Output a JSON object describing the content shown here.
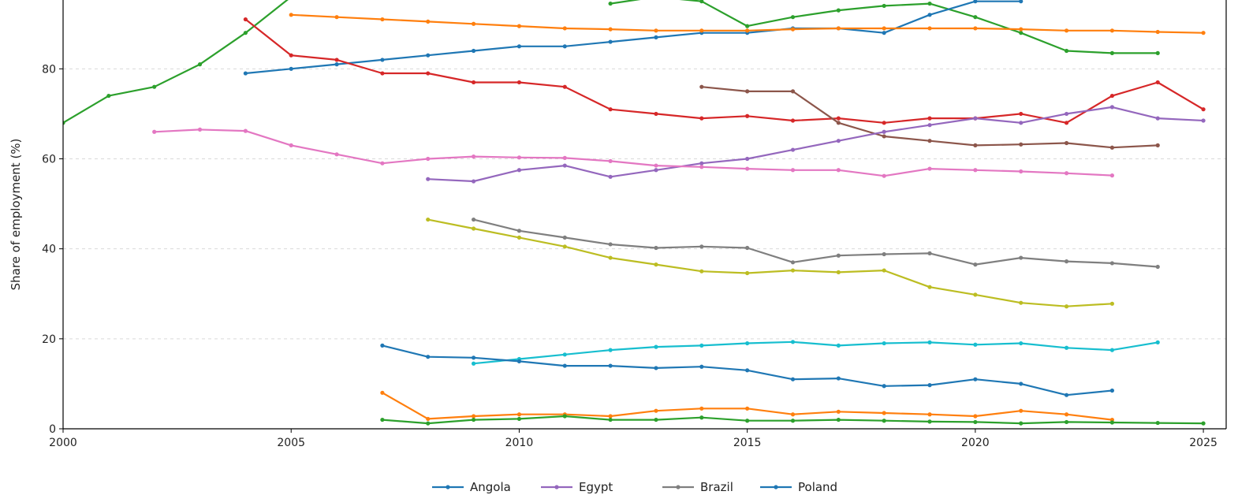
{
  "chart_data": {
    "type": "line",
    "title": "",
    "xlabel": "",
    "ylabel": "Share of employment (%)",
    "xlim": [
      2000,
      2025.5
    ],
    "ylim": [
      0,
      96
    ],
    "grid": "horizontal-dashed",
    "x_ticks": [
      2000,
      2005,
      2010,
      2015,
      2020,
      2025
    ],
    "y_ticks": [
      0,
      20,
      40,
      60,
      80
    ],
    "legend": {
      "placement": "bottom",
      "entries": [
        {
          "label": "Angola",
          "color": "#1f77b4"
        },
        {
          "label": "Egypt",
          "color": "#9467bd"
        },
        {
          "label": "Brazil",
          "color": "#7f7f7f"
        },
        {
          "label": "Poland",
          "color": "#1f77b4"
        }
      ]
    },
    "series": [
      {
        "color": "#2ca02c",
        "x": [
          2000,
          2001,
          2002,
          2003,
          2004,
          2005
        ],
        "y": [
          68,
          74,
          76,
          81,
          88,
          96
        ]
      },
      {
        "color": "#2ca02c",
        "x": [
          2012,
          2013,
          2014,
          2015,
          2016,
          2017,
          2018,
          2019,
          2020,
          2021,
          2022,
          2023,
          2024
        ],
        "y": [
          94.5,
          96,
          95,
          89.5,
          91.5,
          93,
          94,
          94.5,
          91.5,
          88,
          84,
          83.5,
          83.5
        ]
      },
      {
        "color": "#1f77b4",
        "x": [
          2004,
          2005,
          2006,
          2007,
          2008,
          2009,
          2010,
          2011,
          2012,
          2013,
          2014,
          2015,
          2016,
          2017,
          2018,
          2019,
          2020,
          2021
        ],
        "y": [
          79,
          80,
          81,
          82,
          83,
          84,
          85,
          85,
          86,
          87,
          88,
          88,
          89,
          89,
          88,
          92,
          95,
          95
        ]
      },
      {
        "color": "#ff7f0e",
        "x": [
          2005,
          2006,
          2007,
          2008,
          2009,
          2010,
          2011,
          2012,
          2013,
          2014,
          2015,
          2016,
          2017,
          2018,
          2019,
          2020,
          2021,
          2022,
          2023,
          2024,
          2025
        ],
        "y": [
          92,
          91.5,
          91,
          90.5,
          90,
          89.5,
          89,
          88.8,
          88.5,
          88.5,
          88.5,
          88.8,
          89,
          89,
          89,
          89,
          88.8,
          88.5,
          88.5,
          88.2,
          88
        ]
      },
      {
        "color": "#d62728",
        "x": [
          2004,
          2005,
          2006,
          2007,
          2008,
          2009,
          2010,
          2011,
          2012,
          2013,
          2014,
          2015,
          2016,
          2017,
          2018,
          2019,
          2020,
          2021,
          2022,
          2023,
          2024,
          2025
        ],
        "y": [
          91,
          83,
          82,
          79,
          79,
          77,
          77,
          76,
          71,
          70,
          69,
          69.5,
          68.5,
          69,
          68,
          69,
          69,
          70,
          68,
          74,
          77,
          71
        ]
      },
      {
        "color": "#8c564b",
        "x": [
          2014,
          2015,
          2016,
          2017,
          2018,
          2019,
          2020,
          2021,
          2022,
          2023,
          2024
        ],
        "y": [
          76,
          75,
          75,
          68,
          65,
          64,
          63,
          63.2,
          63.5,
          62.5,
          63
        ]
      },
      {
        "color": "#9467bd",
        "x": [
          2008,
          2009,
          2010,
          2011,
          2012,
          2013,
          2014,
          2015,
          2016,
          2017,
          2018,
          2019,
          2020,
          2021,
          2022,
          2023,
          2024,
          2025
        ],
        "y": [
          55.5,
          55,
          57.5,
          58.5,
          56,
          57.5,
          59,
          60,
          62,
          64,
          66,
          67.5,
          69,
          68,
          70,
          71.5,
          69,
          68.5
        ]
      },
      {
        "color": "#e377c2",
        "x": [
          2002,
          2003,
          2004,
          2005,
          2006,
          2007,
          2008,
          2009,
          2010,
          2011,
          2012,
          2013,
          2014,
          2015,
          2016,
          2017,
          2018,
          2019,
          2020,
          2021,
          2022,
          2023
        ],
        "y": [
          66,
          66.5,
          66.2,
          63,
          61,
          59,
          60,
          60.5,
          60.3,
          60.2,
          59.5,
          58.5,
          58.2,
          57.8,
          57.5,
          57.5,
          56.2,
          57.8,
          57.5,
          57.2,
          56.8,
          56.3
        ]
      },
      {
        "color": "#7f7f7f",
        "x": [
          2009,
          2010,
          2011,
          2012,
          2013,
          2014,
          2015,
          2016,
          2017,
          2018,
          2019,
          2020,
          2021,
          2022,
          2023,
          2024
        ],
        "y": [
          46.5,
          44,
          42.5,
          41,
          40.2,
          40.5,
          40.2,
          37,
          38.5,
          38.8,
          39,
          36.5,
          38,
          37.2,
          36.8,
          36
        ]
      },
      {
        "color": "#bcbd22",
        "x": [
          2008,
          2009,
          2010,
          2011,
          2012,
          2013,
          2014,
          2015,
          2016,
          2017,
          2018,
          2019,
          2020,
          2021,
          2022,
          2023
        ],
        "y": [
          46.5,
          44.5,
          42.5,
          40.5,
          38,
          36.5,
          35,
          34.6,
          35.2,
          34.8,
          35.2,
          31.5,
          29.8,
          28,
          27.2,
          27.8
        ]
      },
      {
        "color": "#17becf",
        "x": [
          2009,
          2010,
          2011,
          2012,
          2013,
          2014,
          2015,
          2016,
          2017,
          2018,
          2019,
          2020,
          2021,
          2022,
          2023,
          2024
        ],
        "y": [
          14.5,
          15.5,
          16.5,
          17.5,
          18.2,
          18.5,
          19,
          19.3,
          18.5,
          19,
          19.2,
          18.7,
          19,
          18,
          17.5,
          19.2
        ]
      },
      {
        "color": "#1f77b4",
        "x": [
          2007,
          2008,
          2009,
          2010,
          2011,
          2012,
          2013,
          2014,
          2015,
          2016,
          2017,
          2018,
          2019,
          2020,
          2021,
          2022,
          2023
        ],
        "y": [
          18.5,
          16,
          15.8,
          15,
          14,
          14,
          13.5,
          13.8,
          13,
          11,
          11.2,
          9.5,
          9.7,
          11,
          10,
          7.5,
          8.5
        ]
      },
      {
        "color": "#ff7f0e",
        "x": [
          2007,
          2008,
          2009,
          2010,
          2011,
          2012,
          2013,
          2014,
          2015,
          2016,
          2017,
          2018,
          2019,
          2020,
          2021,
          2022,
          2023
        ],
        "y": [
          8,
          2.2,
          2.8,
          3.2,
          3.2,
          2.8,
          4,
          4.5,
          4.5,
          3.2,
          3.8,
          3.5,
          3.2,
          2.8,
          4,
          3.2,
          2
        ]
      },
      {
        "color": "#2ca02c",
        "x": [
          2007,
          2008,
          2009,
          2010,
          2011,
          2012,
          2013,
          2014,
          2015,
          2016,
          2017,
          2018,
          2019,
          2020,
          2021,
          2022,
          2023,
          2024,
          2025
        ],
        "y": [
          2,
          1.2,
          2,
          2.2,
          2.8,
          2,
          2,
          2.5,
          1.8,
          1.8,
          2,
          1.8,
          1.6,
          1.5,
          1.2,
          1.5,
          1.4,
          1.3,
          1.2
        ]
      }
    ]
  }
}
